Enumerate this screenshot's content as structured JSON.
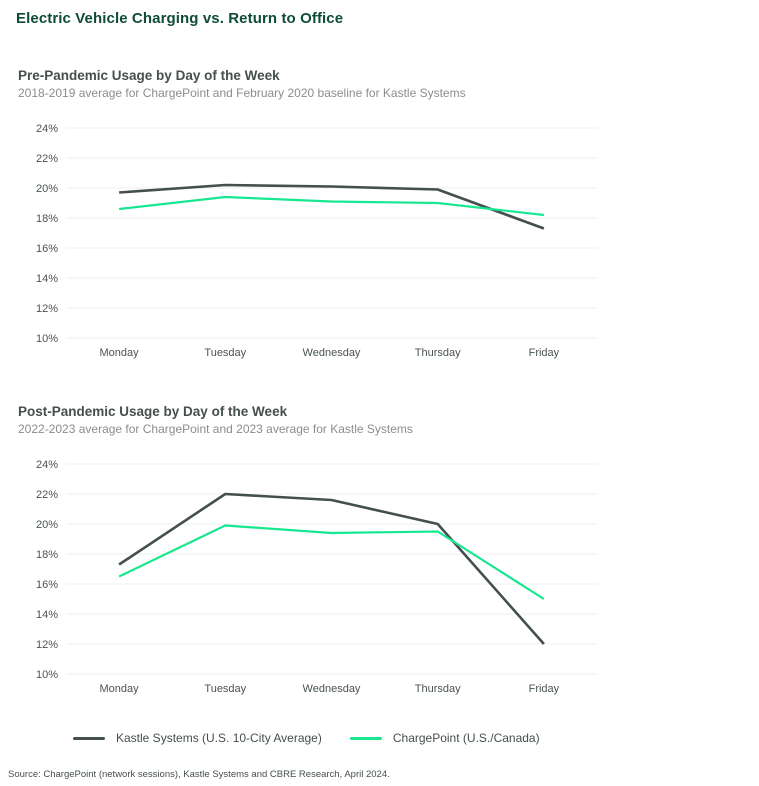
{
  "page_title": "Electric Vehicle Charging vs. Return to Office",
  "colors": {
    "title_green": "#0E4B39",
    "kastle": "#444F4F",
    "chargepoint": "#17E88F",
    "grid": "#ECEFED",
    "axis_label": "#4A5452",
    "section_title": "#454F4D",
    "subtitle": "#898E8C",
    "source": "#454F4D",
    "legend_text": "#454F4D"
  },
  "chart_data": [
    {
      "type": "line",
      "title": "Pre-Pandemic Usage by Day of the Week",
      "subtitle": "2018-2019 average for ChargePoint and February 2020 baseline for Kastle Systems",
      "categories": [
        "Monday",
        "Tuesday",
        "Wednesday",
        "Thursday",
        "Friday"
      ],
      "series": [
        {
          "name": "Kastle Systems (U.S. 10-City Average)",
          "color_key": "kastle",
          "values": [
            19.7,
            20.2,
            20.1,
            19.9,
            17.3
          ]
        },
        {
          "name": "ChargePoint (U.S./Canada)",
          "color_key": "chargepoint",
          "values": [
            18.6,
            19.4,
            19.1,
            19.0,
            18.2
          ]
        }
      ],
      "ylim": [
        10,
        24
      ],
      "ytick_step": 2,
      "ytick_suffix": "%",
      "grid": true,
      "legend_position": "shared-bottom"
    },
    {
      "type": "line",
      "title": "Post-Pandemic Usage by Day of the Week",
      "subtitle": "2022-2023 average for ChargePoint and 2023 average for Kastle Systems",
      "categories": [
        "Monday",
        "Tuesday",
        "Wednesday",
        "Thursday",
        "Friday"
      ],
      "series": [
        {
          "name": "Kastle Systems (U.S. 10-City Average)",
          "color_key": "kastle",
          "values": [
            17.3,
            22.0,
            21.6,
            20.0,
            12.0
          ]
        },
        {
          "name": "ChargePoint (U.S./Canada)",
          "color_key": "chargepoint",
          "values": [
            16.5,
            19.9,
            19.4,
            19.5,
            15.0
          ]
        }
      ],
      "ylim": [
        10,
        24
      ],
      "ytick_step": 2,
      "ytick_suffix": "%",
      "grid": true,
      "legend_position": "shared-bottom"
    }
  ],
  "legend": {
    "items": [
      {
        "label": "Kastle Systems (U.S. 10-City Average)",
        "color_key": "kastle"
      },
      {
        "label": "ChargePoint (U.S./Canada)",
        "color_key": "chargepoint"
      }
    ]
  },
  "source_note": "Source: ChargePoint (network sessions), Kastle Systems and CBRE Research, April 2024."
}
